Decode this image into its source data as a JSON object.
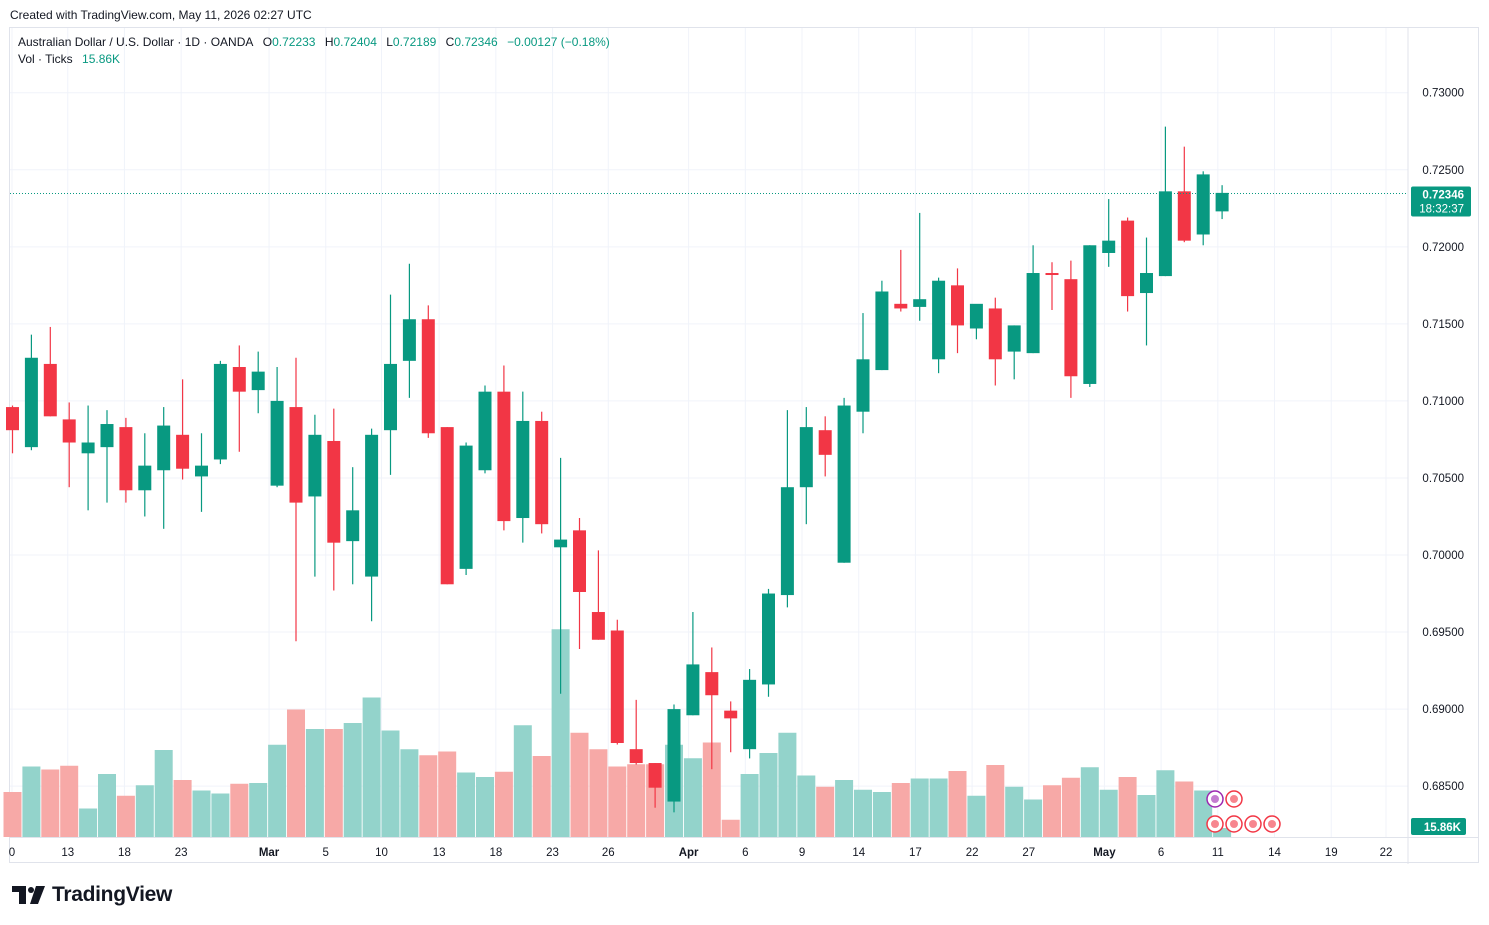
{
  "header": {
    "created_note": "Created with TradingView.com, May 11, 2026 02:27 UTC"
  },
  "legend": {
    "symbol": "Australian Dollar / U.S. Dollar · 1D · OANDA",
    "open_label": "O",
    "open": "0.72233",
    "high_label": "H",
    "high": "0.72404",
    "low_label": "L",
    "low": "0.72189",
    "close_label": "C",
    "close": "0.72346",
    "change": "−0.00127 (−0.18%)",
    "volume_label": "Vol · Ticks",
    "volume": "15.86K"
  },
  "price_axis": {
    "labels": [
      "0.73000",
      "0.72500",
      "0.72000",
      "0.71500",
      "0.71000",
      "0.70500",
      "0.70000",
      "0.69500",
      "0.69000",
      "0.68500"
    ],
    "last_price": "0.72346",
    "countdown": "18:32:37",
    "volume_tag": "15.86K"
  },
  "brand": {
    "name": "TradingView"
  },
  "colors": {
    "up": "#089981",
    "down": "#f23645",
    "up_volume": "#93d3cb",
    "down_volume": "#f7a9a7",
    "grid": "#f0f3fa"
  },
  "chart_data": {
    "type": "candlestick",
    "title": "Australian Dollar / U.S. Dollar · 1D · OANDA",
    "x_ticks": [
      "0",
      "13",
      "18",
      "23",
      "Mar",
      "5",
      "10",
      "13",
      "18",
      "23",
      "26",
      "Apr",
      "6",
      "9",
      "14",
      "17",
      "22",
      "27",
      "May",
      "6",
      "11",
      "14",
      "19",
      "22"
    ],
    "y_range": [
      0.6817,
      0.7342
    ],
    "candles": [
      {
        "o": 0.7096,
        "h": 0.7097,
        "l": 0.7066,
        "c": 0.7081
      },
      {
        "o": 0.707,
        "h": 0.7143,
        "l": 0.7068,
        "c": 0.7128
      },
      {
        "o": 0.7124,
        "h": 0.7148,
        "l": 0.709,
        "c": 0.709
      },
      {
        "o": 0.7088,
        "h": 0.7099,
        "l": 0.7044,
        "c": 0.7073
      },
      {
        "o": 0.7066,
        "h": 0.7097,
        "l": 0.7029,
        "c": 0.7073
      },
      {
        "o": 0.707,
        "h": 0.7094,
        "l": 0.7034,
        "c": 0.7085
      },
      {
        "o": 0.7083,
        "h": 0.7089,
        "l": 0.7034,
        "c": 0.7042
      },
      {
        "o": 0.7042,
        "h": 0.7079,
        "l": 0.7025,
        "c": 0.7058
      },
      {
        "o": 0.7055,
        "h": 0.7096,
        "l": 0.7017,
        "c": 0.7084
      },
      {
        "o": 0.7078,
        "h": 0.7114,
        "l": 0.7049,
        "c": 0.7056
      },
      {
        "o": 0.7051,
        "h": 0.7079,
        "l": 0.7028,
        "c": 0.7058
      },
      {
        "o": 0.7062,
        "h": 0.7126,
        "l": 0.7059,
        "c": 0.7124
      },
      {
        "o": 0.7122,
        "h": 0.7136,
        "l": 0.7067,
        "c": 0.7106
      },
      {
        "o": 0.7107,
        "h": 0.7132,
        "l": 0.7092,
        "c": 0.7119
      },
      {
        "o": 0.7045,
        "h": 0.7122,
        "l": 0.7044,
        "c": 0.71
      },
      {
        "o": 0.7096,
        "h": 0.7128,
        "l": 0.6944,
        "c": 0.7034
      },
      {
        "o": 0.7038,
        "h": 0.7091,
        "l": 0.6986,
        "c": 0.7078
      },
      {
        "o": 0.7074,
        "h": 0.7095,
        "l": 0.6977,
        "c": 0.7008
      },
      {
        "o": 0.7009,
        "h": 0.7057,
        "l": 0.6981,
        "c": 0.7029
      },
      {
        "o": 0.6986,
        "h": 0.7082,
        "l": 0.6957,
        "c": 0.7078
      },
      {
        "o": 0.7081,
        "h": 0.7169,
        "l": 0.7052,
        "c": 0.7124
      },
      {
        "o": 0.7126,
        "h": 0.7189,
        "l": 0.7102,
        "c": 0.7153
      },
      {
        "o": 0.7153,
        "h": 0.7162,
        "l": 0.7076,
        "c": 0.7079
      },
      {
        "o": 0.7083,
        "h": 0.7083,
        "l": 0.6981,
        "c": 0.6981
      },
      {
        "o": 0.6991,
        "h": 0.7073,
        "l": 0.6987,
        "c": 0.7071
      },
      {
        "o": 0.7055,
        "h": 0.711,
        "l": 0.7053,
        "c": 0.7106
      },
      {
        "o": 0.7106,
        "h": 0.7123,
        "l": 0.7016,
        "c": 0.7022
      },
      {
        "o": 0.7024,
        "h": 0.7106,
        "l": 0.7008,
        "c": 0.7087
      },
      {
        "o": 0.7087,
        "h": 0.7093,
        "l": 0.7014,
        "c": 0.702
      },
      {
        "o": 0.7005,
        "h": 0.7063,
        "l": 0.691,
        "c": 0.701
      },
      {
        "o": 0.7016,
        "h": 0.7024,
        "l": 0.6939,
        "c": 0.6976
      },
      {
        "o": 0.6963,
        "h": 0.7003,
        "l": 0.6945,
        "c": 0.6945
      },
      {
        "o": 0.6951,
        "h": 0.6958,
        "l": 0.6877,
        "c": 0.6878
      },
      {
        "o": 0.6874,
        "h": 0.6906,
        "l": 0.6864,
        "c": 0.6865
      },
      {
        "o": 0.6865,
        "h": 0.6865,
        "l": 0.6836,
        "c": 0.6849
      },
      {
        "o": 0.684,
        "h": 0.6903,
        "l": 0.6833,
        "c": 0.69
      },
      {
        "o": 0.6896,
        "h": 0.6963,
        "l": 0.6896,
        "c": 0.6929
      },
      {
        "o": 0.6924,
        "h": 0.694,
        "l": 0.6861,
        "c": 0.6909
      },
      {
        "o": 0.6899,
        "h": 0.6905,
        "l": 0.6872,
        "c": 0.6894
      },
      {
        "o": 0.6874,
        "h": 0.6926,
        "l": 0.6868,
        "c": 0.6919
      },
      {
        "o": 0.6916,
        "h": 0.6978,
        "l": 0.6908,
        "c": 0.6975
      },
      {
        "o": 0.6974,
        "h": 0.7094,
        "l": 0.6966,
        "c": 0.7044
      },
      {
        "o": 0.7044,
        "h": 0.7096,
        "l": 0.702,
        "c": 0.7083
      },
      {
        "o": 0.7081,
        "h": 0.709,
        "l": 0.7051,
        "c": 0.7065
      },
      {
        "o": 0.6995,
        "h": 0.7102,
        "l": 0.6995,
        "c": 0.7097
      },
      {
        "o": 0.7093,
        "h": 0.7157,
        "l": 0.7079,
        "c": 0.7127
      },
      {
        "o": 0.712,
        "h": 0.7178,
        "l": 0.712,
        "c": 0.7171
      },
      {
        "o": 0.7163,
        "h": 0.7198,
        "l": 0.7158,
        "c": 0.716
      },
      {
        "o": 0.7161,
        "h": 0.7222,
        "l": 0.7152,
        "c": 0.7166
      },
      {
        "o": 0.7127,
        "h": 0.718,
        "l": 0.7118,
        "c": 0.7178
      },
      {
        "o": 0.7175,
        "h": 0.7186,
        "l": 0.7131,
        "c": 0.7149
      },
      {
        "o": 0.7147,
        "h": 0.7161,
        "l": 0.714,
        "c": 0.7163
      },
      {
        "o": 0.716,
        "h": 0.7167,
        "l": 0.711,
        "c": 0.7127
      },
      {
        "o": 0.7132,
        "h": 0.7149,
        "l": 0.7114,
        "c": 0.7149
      },
      {
        "o": 0.7131,
        "h": 0.7201,
        "l": 0.7131,
        "c": 0.7183
      },
      {
        "o": 0.7183,
        "h": 0.719,
        "l": 0.7159,
        "c": 0.7182
      },
      {
        "o": 0.7179,
        "h": 0.7191,
        "l": 0.7102,
        "c": 0.7116
      },
      {
        "o": 0.7111,
        "h": 0.7201,
        "l": 0.7109,
        "c": 0.7201
      },
      {
        "o": 0.7196,
        "h": 0.7231,
        "l": 0.7187,
        "c": 0.7204
      },
      {
        "o": 0.7217,
        "h": 0.7219,
        "l": 0.7158,
        "c": 0.7168
      },
      {
        "o": 0.717,
        "h": 0.7206,
        "l": 0.7136,
        "c": 0.7183
      },
      {
        "o": 0.7181,
        "h": 0.7278,
        "l": 0.7181,
        "c": 0.7236
      },
      {
        "o": 0.7236,
        "h": 0.7265,
        "l": 0.7203,
        "c": 0.7204
      },
      {
        "o": 0.7208,
        "h": 0.7249,
        "l": 0.7201,
        "c": 0.7247
      },
      {
        "o": 0.7223,
        "h": 0.724,
        "l": 0.7218,
        "c": 0.7235
      }
    ],
    "volume": [
      {
        "v": 6.0,
        "up": false
      },
      {
        "v": 9.4,
        "up": true
      },
      {
        "v": 9.0,
        "up": false
      },
      {
        "v": 9.5,
        "up": false
      },
      {
        "v": 3.8,
        "up": true
      },
      {
        "v": 8.4,
        "up": true
      },
      {
        "v": 5.5,
        "up": false
      },
      {
        "v": 6.9,
        "up": true
      },
      {
        "v": 11.6,
        "up": true
      },
      {
        "v": 7.6,
        "up": false
      },
      {
        "v": 6.2,
        "up": true
      },
      {
        "v": 5.8,
        "up": true
      },
      {
        "v": 7.1,
        "up": false
      },
      {
        "v": 7.2,
        "up": true
      },
      {
        "v": 12.3,
        "up": true
      },
      {
        "v": 17.0,
        "up": false
      },
      {
        "v": 14.4,
        "up": true
      },
      {
        "v": 14.4,
        "up": false
      },
      {
        "v": 15.2,
        "up": true
      },
      {
        "v": 18.6,
        "up": true
      },
      {
        "v": 14.2,
        "up": true
      },
      {
        "v": 11.7,
        "up": true
      },
      {
        "v": 10.9,
        "up": false
      },
      {
        "v": 11.4,
        "up": false
      },
      {
        "v": 8.6,
        "up": true
      },
      {
        "v": 8.0,
        "up": true
      },
      {
        "v": 8.7,
        "up": false
      },
      {
        "v": 14.9,
        "up": true
      },
      {
        "v": 10.8,
        "up": false
      },
      {
        "v": 27.7,
        "up": true
      },
      {
        "v": 13.9,
        "up": false
      },
      {
        "v": 11.7,
        "up": false
      },
      {
        "v": 9.4,
        "up": false
      },
      {
        "v": 9.7,
        "up": false
      },
      {
        "v": 9.7,
        "up": false
      },
      {
        "v": 12.3,
        "up": true
      },
      {
        "v": 10.5,
        "up": true
      },
      {
        "v": 12.6,
        "up": false
      },
      {
        "v": 2.3,
        "up": false
      },
      {
        "v": 8.4,
        "up": true
      },
      {
        "v": 11.2,
        "up": true
      },
      {
        "v": 13.9,
        "up": true
      },
      {
        "v": 8.2,
        "up": true
      },
      {
        "v": 6.7,
        "up": false
      },
      {
        "v": 7.6,
        "up": true
      },
      {
        "v": 6.3,
        "up": true
      },
      {
        "v": 6.0,
        "up": true
      },
      {
        "v": 7.2,
        "up": false
      },
      {
        "v": 7.8,
        "up": true
      },
      {
        "v": 7.8,
        "up": true
      },
      {
        "v": 8.8,
        "up": false
      },
      {
        "v": 5.5,
        "up": true
      },
      {
        "v": 9.6,
        "up": false
      },
      {
        "v": 6.7,
        "up": true
      },
      {
        "v": 5.0,
        "up": true
      },
      {
        "v": 6.9,
        "up": false
      },
      {
        "v": 7.9,
        "up": false
      },
      {
        "v": 9.3,
        "up": true
      },
      {
        "v": 6.3,
        "up": true
      },
      {
        "v": 8.0,
        "up": false
      },
      {
        "v": 5.6,
        "up": true
      },
      {
        "v": 8.9,
        "up": true
      },
      {
        "v": 7.4,
        "up": false
      },
      {
        "v": 6.2,
        "up": true
      },
      {
        "v": 1.2,
        "up": true
      }
    ]
  }
}
